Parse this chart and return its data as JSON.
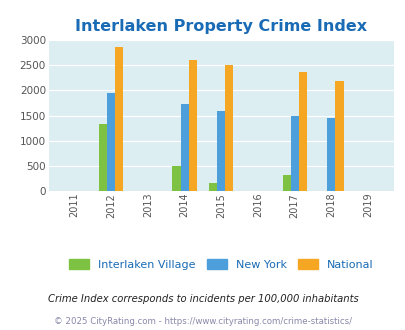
{
  "title": "Interlaken Property Crime Index",
  "years": [
    2011,
    2012,
    2013,
    2014,
    2015,
    2016,
    2017,
    2018,
    2019
  ],
  "bar_years": [
    2012,
    2014,
    2015,
    2017,
    2018
  ],
  "interlaken": [
    1330,
    500,
    160,
    330,
    0
  ],
  "new_york": [
    1950,
    1720,
    1590,
    1500,
    1460
  ],
  "national": [
    2850,
    2600,
    2500,
    2350,
    2180
  ],
  "colors": {
    "interlaken": "#7dc242",
    "new_york": "#4d9fdb",
    "national": "#f5a623"
  },
  "ylim": [
    0,
    3000
  ],
  "yticks": [
    0,
    500,
    1000,
    1500,
    2000,
    2500,
    3000
  ],
  "title_color": "#1a6bb5",
  "legend_labels": [
    "Interlaken Village",
    "New York",
    "National"
  ],
  "note": "Crime Index corresponds to incidents per 100,000 inhabitants",
  "footer": "© 2025 CityRating.com - https://www.cityrating.com/crime-statistics/",
  "title_fontsize": 11.5,
  "axis_bg": "#ddeef2",
  "fig_bg": "#ffffff",
  "bar_width": 0.22,
  "xlim": [
    2010.3,
    2019.7
  ]
}
